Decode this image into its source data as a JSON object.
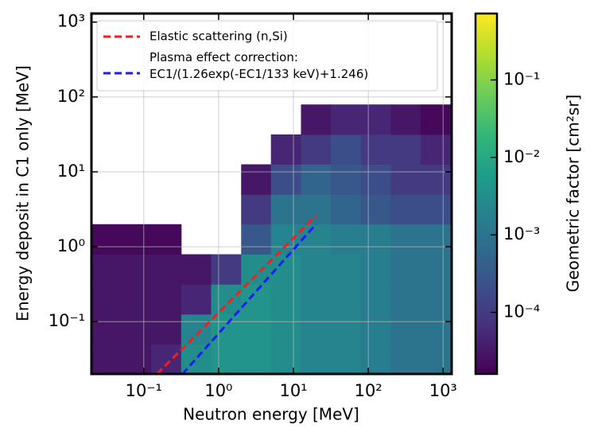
{
  "chart_data": {
    "type": "heatmap",
    "xlabel": "Neutron energy [MeV]",
    "ylabel": "Energy deposit in C1 only [MeV]",
    "colorbar_label": "Geometric factor [cm²sr]",
    "log_x": true,
    "log_y": true,
    "log_color": true,
    "grid": true,
    "legend_position": "upper left",
    "colormap": "viridis",
    "xlim": [
      0.02,
      1300
    ],
    "ylim": [
      0.02,
      1300
    ],
    "clim": [
      1.6e-05,
      0.72
    ],
    "xticks": [
      {
        "value": 0.1,
        "label": "10⁻¹"
      },
      {
        "value": 1,
        "label": "10⁰"
      },
      {
        "value": 10,
        "label": "10¹"
      },
      {
        "value": 100,
        "label": "10²"
      },
      {
        "value": 1000,
        "label": "10³"
      }
    ],
    "yticks": [
      {
        "value": 0.1,
        "label": "10⁻¹"
      },
      {
        "value": 1,
        "label": "10⁰"
      },
      {
        "value": 10,
        "label": "10¹"
      },
      {
        "value": 100,
        "label": "10²"
      },
      {
        "value": 1000,
        "label": "10³"
      }
    ],
    "cticks": [
      {
        "value": 0.1,
        "label": "10⁻¹"
      },
      {
        "value": 0.01,
        "label": "10⁻²"
      },
      {
        "value": 0.001,
        "label": "10⁻³"
      },
      {
        "value": 0.0001,
        "label": "10⁻⁴"
      }
    ],
    "x_edges": [
      0.02,
      0.05,
      0.126,
      0.316,
      0.794,
      2,
      5,
      12.6,
      31.6,
      79.4,
      200,
      500,
      1260
    ],
    "y_edges": [
      0.02,
      0.05,
      0.126,
      0.316,
      0.794,
      2,
      5,
      12.6,
      31.6,
      79.4
    ],
    "z": [
      [
        3e-05,
        3e-05,
        5e-05,
        0.003,
        0.004,
        0.004,
        0.003,
        0.002,
        0.002,
        0.0015,
        0.001,
        0.001
      ],
      [
        3e-05,
        3e-05,
        3e-05,
        0.002,
        0.004,
        0.004,
        0.003,
        0.002,
        0.002,
        0.0015,
        0.001,
        0.001
      ],
      [
        3e-05,
        3e-05,
        3e-05,
        5e-05,
        0.003,
        0.004,
        0.003,
        0.002,
        0.002,
        0.0015,
        0.001,
        0.001
      ],
      [
        3e-05,
        3e-05,
        3e-05,
        3e-05,
        0.0001,
        0.003,
        0.003,
        0.002,
        0.002,
        0.0015,
        0.001,
        0.001
      ],
      [
        2e-05,
        2e-05,
        2e-05,
        null,
        null,
        0.0003,
        0.002,
        0.002,
        0.0015,
        0.0015,
        0.001,
        0.001
      ],
      [
        null,
        null,
        null,
        null,
        null,
        0.0001,
        0.001,
        0.001,
        0.0005,
        0.0003,
        0.0002,
        0.0002
      ],
      [
        null,
        null,
        null,
        null,
        null,
        3e-05,
        0.0002,
        0.0005,
        0.0003,
        0.0002,
        0.0001,
        0.0001
      ],
      [
        null,
        null,
        null,
        null,
        null,
        null,
        5e-05,
        0.0001,
        0.0002,
        0.0001,
        0.0001,
        5e-05
      ],
      [
        null,
        null,
        null,
        null,
        null,
        null,
        null,
        3e-05,
        5e-05,
        5e-05,
        3e-05,
        2e-05
      ]
    ],
    "series": [
      {
        "name": "Elastic scattering (n,Si)",
        "color": "#ff1a1a",
        "x": [
          0.15,
          20
        ],
        "values": [
          0.02,
          2.6
        ]
      },
      {
        "name": "Plasma effect correction: EC1/(1.26exp(-EC1/133 keV)+1.246)",
        "color": "#1a1aff",
        "x": [
          0.33,
          20
        ],
        "values": [
          0.02,
          2.0
        ]
      }
    ]
  }
}
